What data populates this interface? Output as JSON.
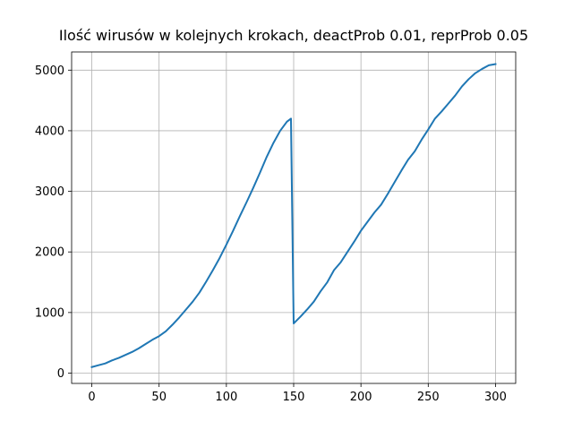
{
  "chart_data": {
    "type": "line",
    "title": "Ilość wirusów w kolejnych krokach, deactProb 0.01, reprProb 0.05",
    "xlabel": "",
    "ylabel": "",
    "xlim": [
      -15,
      315
    ],
    "ylim": [
      -170,
      5300
    ],
    "x_ticks": [
      0,
      50,
      100,
      150,
      200,
      250,
      300
    ],
    "y_ticks": [
      0,
      1000,
      2000,
      3000,
      4000,
      5000
    ],
    "grid": true,
    "legend": "none",
    "series": [
      {
        "color": "#1f77b4",
        "x": [
          0,
          5,
          10,
          15,
          20,
          25,
          30,
          35,
          40,
          45,
          50,
          55,
          60,
          65,
          70,
          75,
          80,
          85,
          90,
          95,
          100,
          105,
          110,
          115,
          120,
          125,
          130,
          135,
          140,
          145,
          148,
          149,
          150,
          155,
          160,
          165,
          170,
          175,
          180,
          185,
          190,
          195,
          200,
          205,
          210,
          215,
          220,
          225,
          230,
          235,
          240,
          245,
          250,
          255,
          260,
          265,
          270,
          275,
          280,
          285,
          290,
          295,
          300
        ],
        "y": [
          100,
          130,
          160,
          210,
          250,
          300,
          350,
          410,
          480,
          550,
          610,
          690,
          800,
          920,
          1050,
          1180,
          1330,
          1510,
          1700,
          1900,
          2120,
          2350,
          2590,
          2820,
          3060,
          3310,
          3570,
          3800,
          4000,
          4150,
          4200,
          2500,
          820,
          930,
          1050,
          1180,
          1350,
          1500,
          1700,
          1830,
          2000,
          2170,
          2350,
          2500,
          2650,
          2780,
          2960,
          3150,
          3340,
          3520,
          3660,
          3850,
          4020,
          4200,
          4320,
          4450,
          4580,
          4730,
          4850,
          4950,
          5020,
          5080,
          5100
        ]
      }
    ]
  }
}
